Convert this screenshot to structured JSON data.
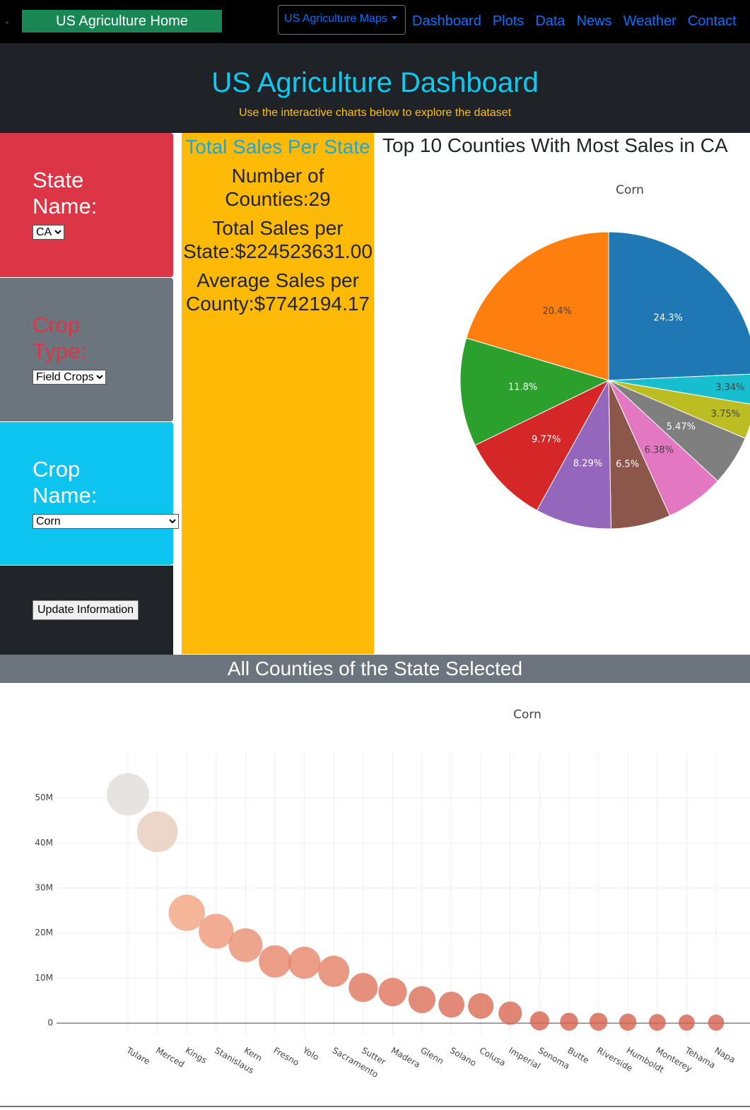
{
  "nav": {
    "brand": "US Agriculture Home",
    "dropdown": "US Agriculture Maps",
    "links": [
      "Dashboard",
      "Plots",
      "Data",
      "News",
      "Weather",
      "Contact"
    ]
  },
  "header": {
    "title": "US Agriculture Dashboard",
    "subtitle": "Use the interactive charts below to explore the dataset"
  },
  "sidebar": {
    "state": {
      "label": "State Name:",
      "value": "CA"
    },
    "crop_type": {
      "label": "Crop Type:",
      "value": "Field Crops"
    },
    "crop_name": {
      "label": "Crop Name:",
      "value": "Corn"
    },
    "button": "Update Information"
  },
  "stats": {
    "title": "Total Sales Per State",
    "items": [
      "Number of Counties:29",
      "Total Sales per State:$224523631.00",
      "Average Sales per County:$7742194.17"
    ]
  },
  "pie_heading": "Top 10 Counties With Most Sales in CA",
  "bubble_heading": "All Counties of the State Selected",
  "chart_data": [
    {
      "type": "pie",
      "title": "Corn",
      "values": [
        24.3,
        3.34,
        3.75,
        5.47,
        6.38,
        6.5,
        8.29,
        9.77,
        11.8,
        20.4
      ],
      "value_labels": [
        "24.3%",
        "3.34%",
        "3.75%",
        "5.47%",
        "6.38%",
        "6.5%",
        "8.29%",
        "9.77%",
        "11.8%",
        "20.4%"
      ],
      "colors": [
        "#1f77b4",
        "#17becf",
        "#bcbd22",
        "#7f7f7f",
        "#e377c2",
        "#8c564b",
        "#9467bd",
        "#d62728",
        "#2ca02c",
        "#ff7f0e"
      ]
    },
    {
      "type": "bubble",
      "title": "Corn",
      "categories": [
        "Tulare",
        "Merced",
        "Kings",
        "Stanislaus",
        "Kern",
        "Fresno",
        "Yolo",
        "Sacramento",
        "Sutter",
        "Madera",
        "Glenn",
        "Solano",
        "Colusa",
        "Imperial",
        "Sonoma",
        "Butte",
        "Riverside",
        "Humboldt",
        "Monterey",
        "Tehama",
        "Napa"
      ],
      "values": [
        50800000,
        42500000,
        24500000,
        20400000,
        17300000,
        13700000,
        13400000,
        11500000,
        7900000,
        6900000,
        5200000,
        4100000,
        3800000,
        2200000,
        500000,
        300000,
        300000,
        200000,
        150000,
        100000,
        100000
      ],
      "ylim": [
        -2500000,
        60000000
      ],
      "yticks": [
        0,
        {
          "value": 10000000,
          "label": "10M"
        },
        {
          "value": 20000000,
          "label": "20M"
        },
        {
          "value": 30000000,
          "label": "30M"
        },
        {
          "value": 40000000,
          "label": "40M"
        },
        {
          "value": 50000000,
          "label": "50M"
        }
      ],
      "grid": true,
      "colorscale": [
        "#d6604d",
        "#f4a582",
        "#e0dcd8"
      ]
    }
  ]
}
